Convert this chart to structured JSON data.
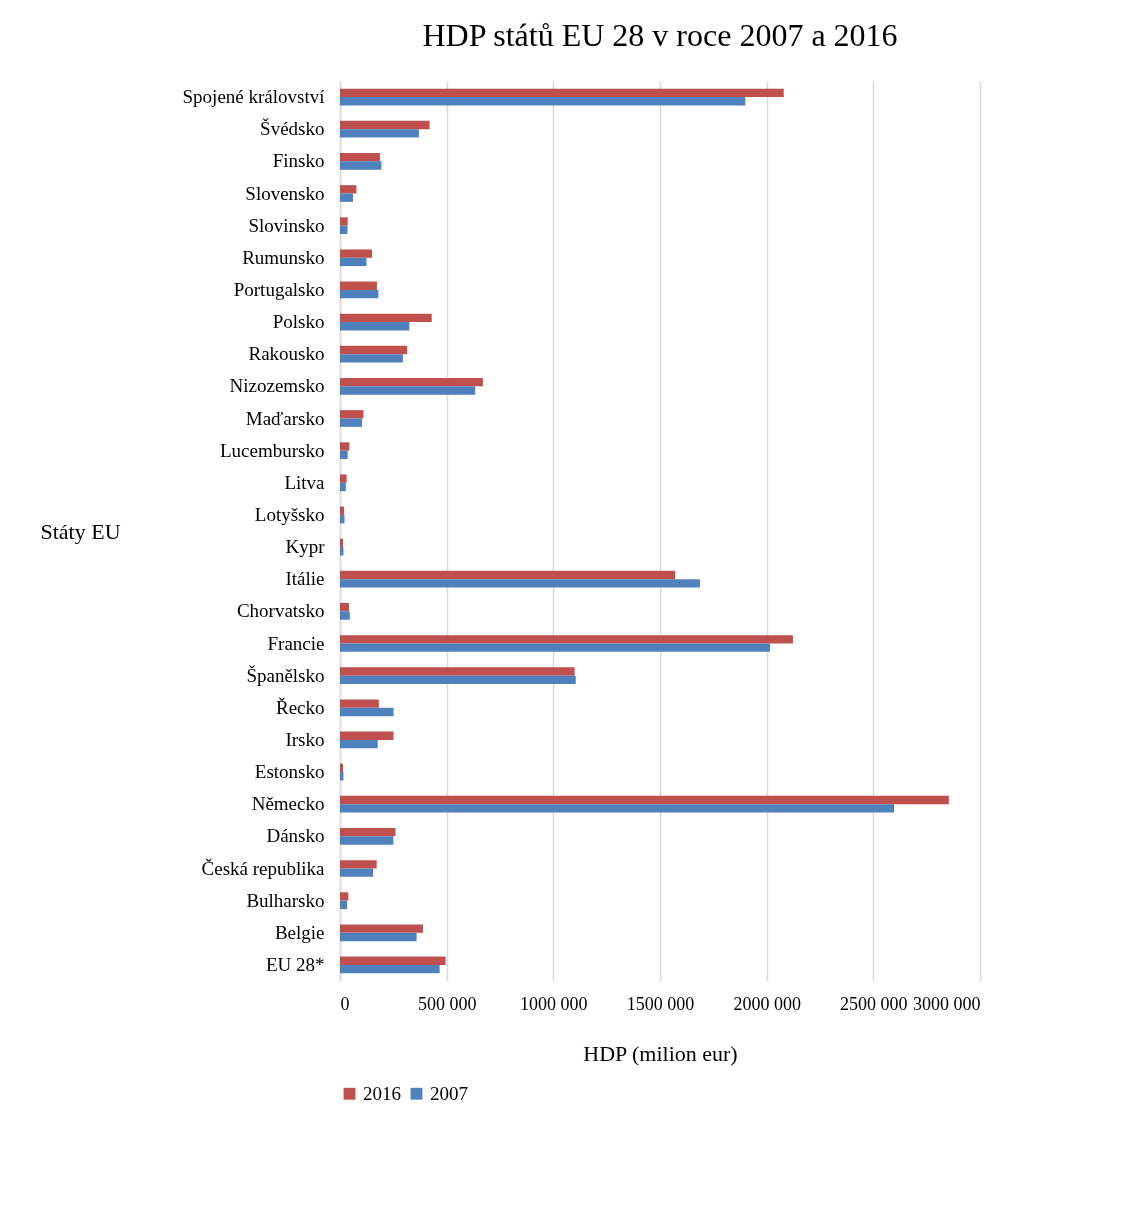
{
  "chart_data": {
    "type": "bar",
    "orientation": "horizontal",
    "title": "HDP států EU 28 v roce 2007 a 2016",
    "xlabel": "HDP (milion eur)",
    "ylabel": "Státy EU",
    "categories": [
      "Spojené království",
      "Švédsko",
      "Finsko",
      "Slovensko",
      "Slovinsko",
      "Rumunsko",
      "Portugalsko",
      "Polsko",
      "Rakousko",
      "Nizozemsko",
      "Maďarsko",
      "Lucembursko",
      "Litva",
      "Lotyšsko",
      "Kypr",
      "Itálie",
      "Chorvatsko",
      "Francie",
      "Španělsko",
      "Řecko",
      "Irsko",
      "Estonsko",
      "Německo",
      "Dánsko",
      "Česká republika",
      "Bulharsko",
      "Belgie",
      "EU 28*"
    ],
    "series": [
      {
        "name": "2016",
        "color": "#c0504d",
        "values": [
          2080000,
          420000,
          187000,
          77000,
          36000,
          150000,
          173000,
          430000,
          315000,
          670000,
          110000,
          44000,
          31000,
          19000,
          14000,
          1571000,
          42000,
          2123000,
          1100000,
          182000,
          251000,
          14000,
          2854000,
          260000,
          172000,
          39000,
          389000,
          495000
        ]
      },
      {
        "name": "2007",
        "color": "#4f81bd",
        "values": [
          1900000,
          370000,
          194000,
          61000,
          35000,
          124000,
          180000,
          325000,
          295000,
          634000,
          103000,
          36000,
          27000,
          21000,
          16000,
          1687000,
          46000,
          2016000,
          1105000,
          251000,
          177000,
          16000,
          2597000,
          250000,
          155000,
          33000,
          359000,
          467000
        ]
      }
    ],
    "xlim": [
      0,
      3000000
    ],
    "xticks": [
      0,
      {
        "value": 500000,
        "label": "500 000"
      },
      {
        "value": 1000000,
        "label": "1000 000"
      },
      {
        "value": 1500000,
        "label": "1500 000"
      },
      {
        "value": 2000000,
        "label": "2000 000"
      },
      {
        "value": 2500000,
        "label": "2500 000"
      },
      {
        "value": 3000000,
        "label": "3000 000"
      }
    ],
    "grid": "x",
    "legend": "bottom"
  }
}
